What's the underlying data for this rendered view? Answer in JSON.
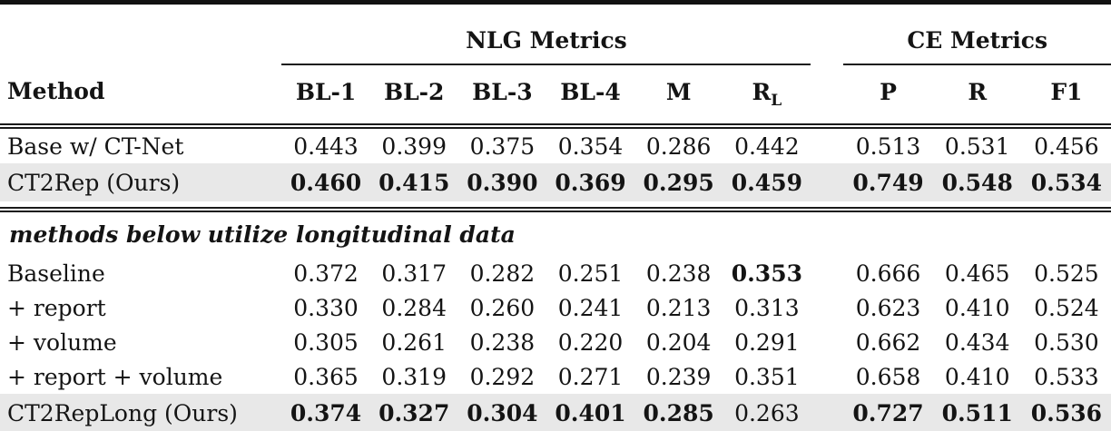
{
  "table": {
    "col_groups": [
      {
        "label": "NLG Metrics",
        "span": 6
      },
      {
        "label": "CE Metrics",
        "span": 3
      }
    ],
    "method_header": "Method",
    "columns": [
      {
        "label": "BL-1"
      },
      {
        "label": "BL-2"
      },
      {
        "label": "BL-3"
      },
      {
        "label": "BL-4"
      },
      {
        "label": "M"
      },
      {
        "label": "R",
        "sub": "L"
      },
      {
        "label": "P"
      },
      {
        "label": "R"
      },
      {
        "label": "F1"
      }
    ],
    "rows": [
      {
        "type": "data",
        "method": "Base w/ CT-Net",
        "values": [
          "0.443",
          "0.399",
          "0.375",
          "0.354",
          "0.286",
          "0.442",
          "0.513",
          "0.531",
          "0.456"
        ],
        "bold_indices": [],
        "highlight": false
      },
      {
        "type": "data",
        "method": "CT2Rep (Ours)",
        "values": [
          "0.460",
          "0.415",
          "0.390",
          "0.369",
          "0.295",
          "0.459",
          "0.749",
          "0.548",
          "0.534"
        ],
        "bold_indices": [
          0,
          1,
          2,
          3,
          4,
          5,
          6,
          7,
          8
        ],
        "highlight": true,
        "rule_after": true
      },
      {
        "type": "section",
        "label": "methods below utilize longitudinal data"
      },
      {
        "type": "data",
        "method": "Baseline",
        "values": [
          "0.372",
          "0.317",
          "0.282",
          "0.251",
          "0.238",
          "0.353",
          "0.666",
          "0.465",
          "0.525"
        ],
        "bold_indices": [
          5
        ],
        "highlight": false
      },
      {
        "type": "data",
        "method": "+ report",
        "values": [
          "0.330",
          "0.284",
          "0.260",
          "0.241",
          "0.213",
          "0.313",
          "0.623",
          "0.410",
          "0.524"
        ],
        "bold_indices": [],
        "highlight": false
      },
      {
        "type": "data",
        "method": "+ volume",
        "values": [
          "0.305",
          "0.261",
          "0.238",
          "0.220",
          "0.204",
          "0.291",
          "0.662",
          "0.434",
          "0.530"
        ],
        "bold_indices": [],
        "highlight": false
      },
      {
        "type": "data",
        "method": "+ report + volume",
        "values": [
          "0.365",
          "0.319",
          "0.292",
          "0.271",
          "0.239",
          "0.351",
          "0.658",
          "0.410",
          "0.533"
        ],
        "bold_indices": [],
        "highlight": false
      },
      {
        "type": "data",
        "method": "CT2RepLong (Ours)",
        "values": [
          "0.374",
          "0.327",
          "0.304",
          "0.401",
          "0.285",
          "0.263",
          "0.727",
          "0.511",
          "0.536"
        ],
        "bold_indices": [
          0,
          1,
          2,
          3,
          4,
          6,
          7,
          8
        ],
        "highlight": true
      }
    ],
    "colors": {
      "highlight_row_bg": "#e8e8e8",
      "rule_color": "#111111",
      "text_color": "#141414"
    }
  }
}
